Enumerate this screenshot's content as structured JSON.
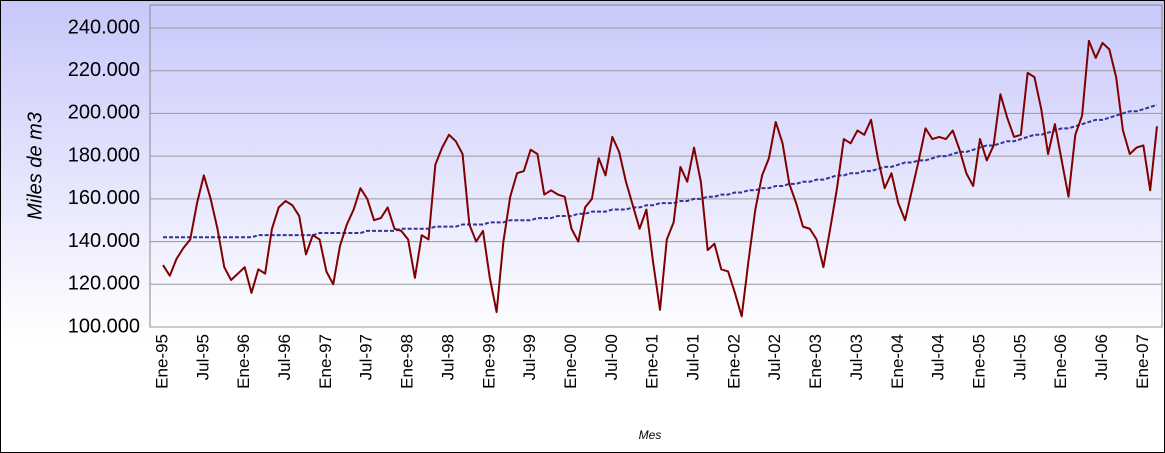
{
  "chart_data": {
    "type": "line",
    "x_label": "Mes",
    "y_label": "Miles de m3",
    "categories": [
      "Ene-95",
      null,
      null,
      null,
      null,
      null,
      "Jul-95",
      null,
      null,
      null,
      null,
      null,
      "Ene-96",
      null,
      null,
      null,
      null,
      null,
      "Jul-96",
      null,
      null,
      null,
      null,
      null,
      "Ene-97",
      null,
      null,
      null,
      null,
      null,
      "Jul-97",
      null,
      null,
      null,
      null,
      null,
      "Ene-98",
      null,
      null,
      null,
      null,
      null,
      "Jul-98",
      null,
      null,
      null,
      null,
      null,
      "Ene-99",
      null,
      null,
      null,
      null,
      null,
      "Jul-99",
      null,
      null,
      null,
      null,
      null,
      "Ene-00",
      null,
      null,
      null,
      null,
      null,
      "Jul-00",
      null,
      null,
      null,
      null,
      null,
      "Ene-01",
      null,
      null,
      null,
      null,
      null,
      "Jul-01",
      null,
      null,
      null,
      null,
      null,
      "Ene-02",
      null,
      null,
      null,
      null,
      null,
      "Jul-02",
      null,
      null,
      null,
      null,
      null,
      "Ene-03",
      null,
      null,
      null,
      null,
      null,
      "Jul-03",
      null,
      null,
      null,
      null,
      null,
      "Ene-04",
      null,
      null,
      null,
      null,
      null,
      "Jul-04",
      null,
      null,
      null,
      null,
      null,
      "Ene-05",
      null,
      null,
      null,
      null,
      null,
      "Jul-05",
      null,
      null,
      null,
      null,
      null,
      "Ene-06",
      null,
      null,
      null,
      null,
      null,
      "Jul-06",
      null,
      null,
      null,
      null,
      null,
      "Ene-07",
      null,
      null
    ],
    "series": [
      {
        "color": "#800000",
        "dashed": false,
        "values": [
          129000,
          124000,
          132000,
          137000,
          141000,
          158000,
          171000,
          160000,
          146000,
          128000,
          122000,
          125000,
          128000,
          116000,
          127000,
          125000,
          146000,
          156000,
          159000,
          157000,
          152000,
          134000,
          143000,
          141000,
          126000,
          120000,
          138000,
          148000,
          155000,
          165000,
          160000,
          150000,
          151000,
          156000,
          146000,
          145000,
          141000,
          123000,
          143000,
          141000,
          176000,
          184000,
          190000,
          187000,
          181000,
          148000,
          140000,
          145000,
          123000,
          107000,
          140000,
          161000,
          172000,
          173000,
          183000,
          181000,
          162000,
          164000,
          162000,
          161000,
          146000,
          140000,
          156000,
          160000,
          179000,
          171000,
          189000,
          182000,
          168000,
          157000,
          146000,
          155000,
          130000,
          108000,
          141000,
          149000,
          175000,
          168000,
          184000,
          168000,
          136000,
          139000,
          127000,
          126000,
          116000,
          105000,
          131000,
          155000,
          171000,
          179000,
          196000,
          186000,
          167000,
          158000,
          147000,
          146000,
          141000,
          128000,
          146000,
          165000,
          188000,
          186000,
          192000,
          190000,
          197000,
          179000,
          165000,
          172000,
          158000,
          150000,
          164000,
          178000,
          193000,
          188000,
          189000,
          188000,
          192000,
          183000,
          172000,
          166000,
          188000,
          178000,
          185000,
          209000,
          198000,
          189000,
          190000,
          219000,
          217000,
          202000,
          181000,
          195000,
          178000,
          161000,
          190000,
          199000,
          234000,
          226000,
          233000,
          230000,
          217000,
          192000,
          181000,
          184000,
          185000,
          164000,
          194000
        ]
      },
      {
        "color": "#333399",
        "dashed": true,
        "values": [
          142000,
          142000,
          142000,
          142000,
          142000,
          142000,
          142000,
          142000,
          142000,
          142000,
          142000,
          142000,
          142000,
          142000,
          143000,
          143000,
          143000,
          143000,
          143000,
          143000,
          143000,
          143000,
          143000,
          144000,
          144000,
          144000,
          144000,
          144000,
          144000,
          144000,
          145000,
          145000,
          145000,
          145000,
          145000,
          146000,
          146000,
          146000,
          146000,
          146000,
          147000,
          147000,
          147000,
          147000,
          148000,
          148000,
          148000,
          148000,
          149000,
          149000,
          149000,
          150000,
          150000,
          150000,
          150000,
          151000,
          151000,
          151000,
          152000,
          152000,
          152000,
          153000,
          153000,
          154000,
          154000,
          154000,
          155000,
          155000,
          155000,
          156000,
          156000,
          157000,
          157000,
          158000,
          158000,
          158000,
          159000,
          159000,
          160000,
          160000,
          161000,
          161000,
          162000,
          162000,
          163000,
          163000,
          164000,
          164000,
          165000,
          165000,
          166000,
          166000,
          167000,
          167000,
          168000,
          168000,
          169000,
          169000,
          170000,
          171000,
          171000,
          172000,
          172000,
          173000,
          173000,
          174000,
          175000,
          175000,
          176000,
          177000,
          177000,
          178000,
          178000,
          179000,
          180000,
          180000,
          181000,
          182000,
          182000,
          183000,
          184000,
          185000,
          185000,
          186000,
          187000,
          187000,
          188000,
          189000,
          190000,
          190000,
          191000,
          192000,
          193000,
          193000,
          194000,
          195000,
          196000,
          197000,
          197000,
          198000,
          199000,
          200000,
          201000,
          201000,
          202000,
          203000,
          204000
        ]
      }
    ],
    "ylim": [
      100000,
      240000
    ],
    "yticks": [
      {
        "value": 100000,
        "label": "100.000"
      },
      {
        "value": 120000,
        "label": "120.000"
      },
      {
        "value": 140000,
        "label": "140.000"
      },
      {
        "value": 160000,
        "label": "160.000"
      },
      {
        "value": 180000,
        "label": "180.000"
      },
      {
        "value": 200000,
        "label": "200.000"
      },
      {
        "value": 220000,
        "label": "220.000"
      },
      {
        "value": 240000,
        "label": "240.000"
      }
    ],
    "grid": true
  }
}
